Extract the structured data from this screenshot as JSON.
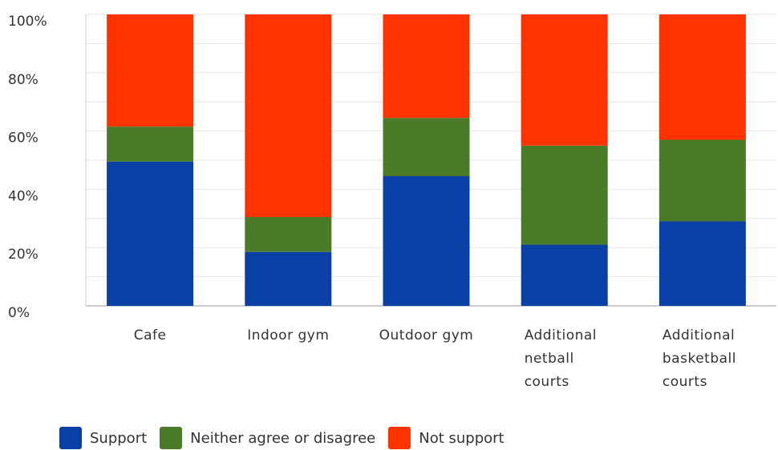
{
  "chart_data": {
    "type": "bar",
    "stacked": true,
    "categories": [
      "Cafe",
      "Indoor gym",
      "Outdoor gym",
      "Additional netball courts",
      "Additional basketball courts"
    ],
    "category_lines": [
      [
        "Cafe"
      ],
      [
        "Indoor gym"
      ],
      [
        "Outdoor gym"
      ],
      [
        "Additional",
        "netball",
        "courts"
      ],
      [
        "Additional",
        "basketball",
        "courts"
      ]
    ],
    "series": [
      {
        "name": "Support",
        "color": "#0a3fa6",
        "values": [
          49.5,
          18.5,
          44.5,
          21,
          29
        ]
      },
      {
        "name": "Neither agree or disagree",
        "color": "#4b7a28",
        "values": [
          12,
          12,
          20,
          34,
          28
        ]
      },
      {
        "name": "Not support",
        "color": "#ff3300",
        "values": [
          38.5,
          69.5,
          35.5,
          45,
          43
        ]
      }
    ],
    "ylim": [
      0,
      100
    ],
    "yticks": [
      "0%",
      "20%",
      "40%",
      "60%",
      "80%",
      "100%"
    ],
    "grid": true,
    "legend_position": "bottom-left"
  }
}
